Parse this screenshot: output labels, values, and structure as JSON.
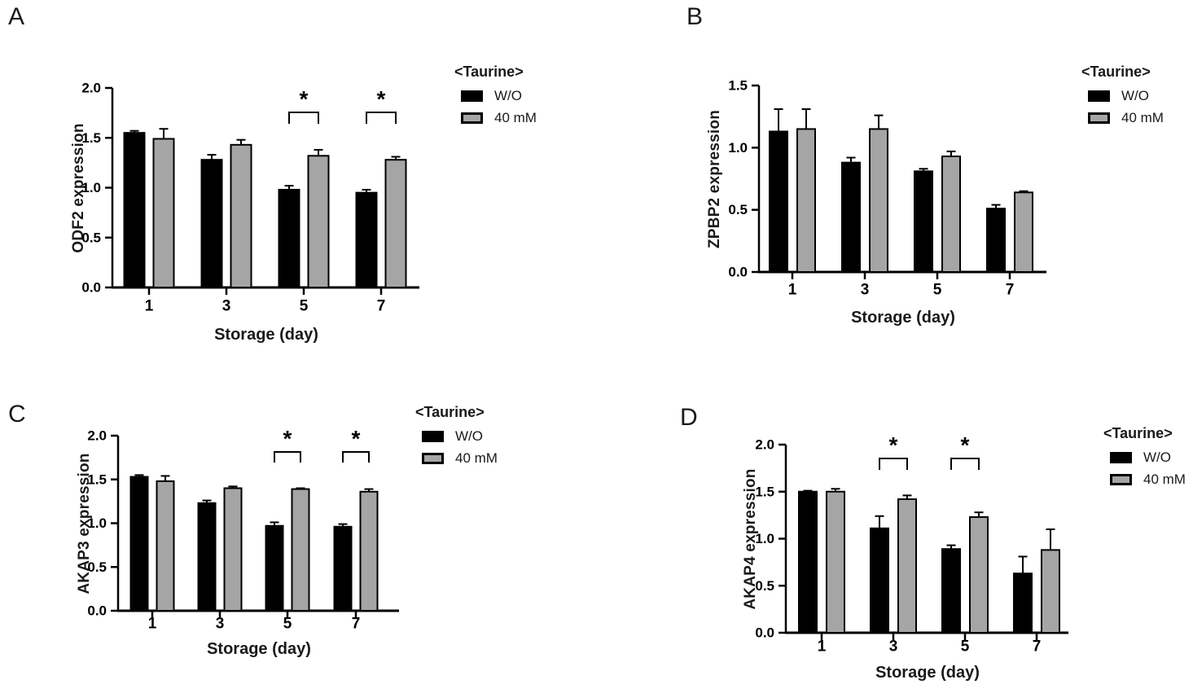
{
  "figure": {
    "background": "#ffffff",
    "legend": {
      "title": "<Taurine>",
      "items": [
        {
          "label": "W/O",
          "swatch": "black-filled"
        },
        {
          "label": "40 mM",
          "swatch": "gray-outlined"
        }
      ]
    },
    "colors": {
      "bar_without": "#000000",
      "bar_40mM": "#A5A5A5",
      "axis": "#000000",
      "text": "#1a1a1a"
    }
  },
  "chart_data": [
    {
      "type": "bar",
      "panel": "A",
      "ylabel": "ODF2 expression",
      "xlabel": "Storage (day)",
      "categories": [
        "1",
        "3",
        "5",
        "7"
      ],
      "series": [
        {
          "name": "W/O",
          "values": [
            1.55,
            1.28,
            0.98,
            0.95
          ],
          "errors": [
            0.02,
            0.05,
            0.04,
            0.03
          ]
        },
        {
          "name": "40 mM",
          "values": [
            1.49,
            1.43,
            1.32,
            1.28
          ],
          "errors": [
            0.1,
            0.05,
            0.06,
            0.03
          ]
        }
      ],
      "ylim": [
        0,
        2.0
      ],
      "ytick_labels": [
        "0.0",
        "0.5",
        "1.0",
        "1.5",
        "2.0"
      ],
      "grid": false,
      "legend_position": "right",
      "significance": [
        {
          "category_index": 2,
          "label": "*"
        },
        {
          "category_index": 3,
          "label": "*"
        }
      ]
    },
    {
      "type": "bar",
      "panel": "B",
      "ylabel": "ZPBP2 expression",
      "xlabel": "Storage (day)",
      "categories": [
        "1",
        "3",
        "5",
        "7"
      ],
      "series": [
        {
          "name": "W/O",
          "values": [
            1.13,
            0.88,
            0.81,
            0.51
          ],
          "errors": [
            0.18,
            0.04,
            0.02,
            0.03
          ]
        },
        {
          "name": "40 mM",
          "values": [
            1.15,
            1.15,
            0.93,
            0.64
          ],
          "errors": [
            0.16,
            0.11,
            0.04,
            0.01
          ]
        }
      ],
      "ylim": [
        0,
        1.5
      ],
      "ytick_labels": [
        "0.0",
        "0.5",
        "1.0",
        "1.5"
      ],
      "grid": false,
      "legend_position": "right",
      "significance": []
    },
    {
      "type": "bar",
      "panel": "C",
      "ylabel": "AKAP3 expression",
      "xlabel": "Storage (day)",
      "categories": [
        "1",
        "3",
        "5",
        "7"
      ],
      "series": [
        {
          "name": "W/O",
          "values": [
            1.53,
            1.23,
            0.97,
            0.96
          ],
          "errors": [
            0.02,
            0.03,
            0.04,
            0.03
          ]
        },
        {
          "name": "40 mM",
          "values": [
            1.48,
            1.4,
            1.39,
            1.36
          ],
          "errors": [
            0.06,
            0.02,
            0.01,
            0.03
          ]
        }
      ],
      "ylim": [
        0,
        2.0
      ],
      "ytick_labels": [
        "0.0",
        "0.5",
        "1.0",
        "1.5",
        "2.0"
      ],
      "grid": false,
      "legend_position": "right",
      "significance": [
        {
          "category_index": 2,
          "label": "*"
        },
        {
          "category_index": 3,
          "label": "*"
        }
      ]
    },
    {
      "type": "bar",
      "panel": "D",
      "ylabel": "AKAP4 expression",
      "xlabel": "Storage (day)",
      "categories": [
        "1",
        "3",
        "5",
        "7"
      ],
      "series": [
        {
          "name": "W/O",
          "values": [
            1.5,
            1.11,
            0.89,
            0.63
          ],
          "errors": [
            0.01,
            0.13,
            0.04,
            0.18
          ]
        },
        {
          "name": "40 mM",
          "values": [
            1.5,
            1.42,
            1.23,
            0.88
          ],
          "errors": [
            0.03,
            0.04,
            0.05,
            0.22
          ]
        }
      ],
      "ylim": [
        0,
        2.0
      ],
      "ytick_labels": [
        "0.0",
        "0.5",
        "1.0",
        "1.5",
        "2.0"
      ],
      "grid": false,
      "legend_position": "right",
      "significance": [
        {
          "category_index": 1,
          "label": "*"
        },
        {
          "category_index": 2,
          "label": "*"
        }
      ]
    }
  ]
}
